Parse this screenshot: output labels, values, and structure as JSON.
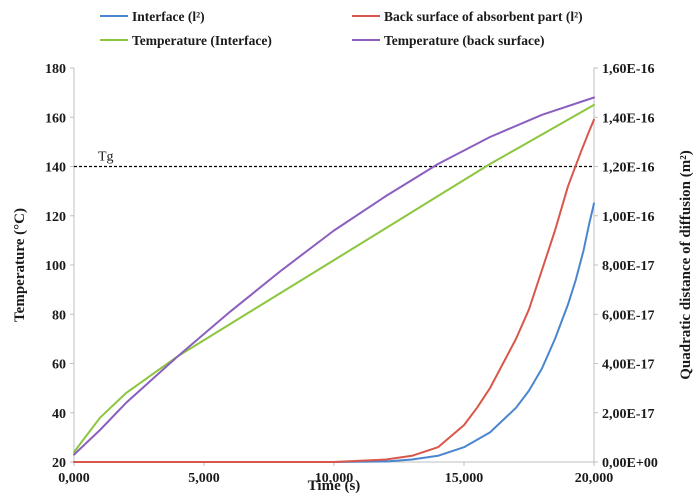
{
  "chart_data": {
    "type": "line",
    "xlabel": "Time (s)",
    "ylabel_left": "Temperature (°C)",
    "ylabel_right": "Quadratic distance of diffusion (m²)",
    "xlim": [
      0,
      20000
    ],
    "ylim_left": [
      20,
      180
    ],
    "ylim_right": [
      0,
      1.6e-16
    ],
    "x_ticks": [
      {
        "value": 0,
        "label": "0,000"
      },
      {
        "value": 5000,
        "label": "5,000"
      },
      {
        "value": 10000,
        "label": "10,000"
      },
      {
        "value": 15000,
        "label": "15,000"
      },
      {
        "value": 20000,
        "label": "20,000"
      }
    ],
    "y_left_ticks": [
      {
        "value": 20,
        "label": "20"
      },
      {
        "value": 40,
        "label": "40"
      },
      {
        "value": 60,
        "label": "60"
      },
      {
        "value": 80,
        "label": "80"
      },
      {
        "value": 100,
        "label": "100"
      },
      {
        "value": 120,
        "label": "120"
      },
      {
        "value": 140,
        "label": "140"
      },
      {
        "value": 160,
        "label": "160"
      },
      {
        "value": 180,
        "label": "180"
      }
    ],
    "y_right_ticks": [
      {
        "value": 0,
        "label": "0,00E+00"
      },
      {
        "value": 2e-17,
        "label": "2,00E-17"
      },
      {
        "value": 4e-17,
        "label": "4,00E-17"
      },
      {
        "value": 6e-17,
        "label": "6,00E-17"
      },
      {
        "value": 8e-17,
        "label": "8,00E-17"
      },
      {
        "value": 1e-16,
        "label": "1,00E-16"
      },
      {
        "value": 1.2e-16,
        "label": "1,20E-16"
      },
      {
        "value": 1.4e-16,
        "label": "1,40E-16"
      },
      {
        "value": 1.6e-16,
        "label": "1,60E-16"
      }
    ],
    "grid": false,
    "legend_position": "top",
    "reference_line": {
      "label": "Tg",
      "value": 140,
      "axis": "left",
      "style": "dashed",
      "color": "#000000"
    },
    "series": [
      {
        "name": "Interface (l²)",
        "axis": "right",
        "color": "#4a86cf",
        "x": [
          0,
          10000,
          12000,
          13000,
          14000,
          15000,
          16000,
          17000,
          17500,
          18000,
          18500,
          19000,
          19300,
          19600,
          19800,
          20000
        ],
        "y": [
          0,
          0,
          2e-19,
          1e-18,
          2.5e-18,
          6e-18,
          1.2e-17,
          2.2e-17,
          2.9e-17,
          3.8e-17,
          5e-17,
          6.4e-17,
          7.4e-17,
          8.6e-17,
          9.6e-17,
          1.05e-16
        ]
      },
      {
        "name": "Back surface of absorbent part (l²)",
        "axis": "right",
        "color": "#d9574a",
        "x": [
          0,
          10000,
          11000,
          12000,
          13000,
          14000,
          15000,
          15500,
          16000,
          16500,
          17000,
          17500,
          18000,
          18500,
          19000,
          19500,
          19800,
          20000
        ],
        "y": [
          0,
          0,
          5e-19,
          1e-18,
          2.5e-18,
          6e-18,
          1.5e-17,
          2.2e-17,
          3e-17,
          4e-17,
          5e-17,
          6.2e-17,
          7.8e-17,
          9.4e-17,
          1.12e-16,
          1.26e-16,
          1.34e-16,
          1.39e-16
        ]
      },
      {
        "name": "Temperature (Interface)",
        "axis": "left",
        "color": "#8cc63f",
        "x": [
          0,
          1000,
          2000,
          4000,
          6000,
          8000,
          10000,
          12000,
          14000,
          16000,
          18000,
          20000
        ],
        "y": [
          24,
          38,
          48,
          63,
          76,
          89,
          102,
          115,
          128,
          141,
          153,
          165
        ]
      },
      {
        "name": "Temperature (back surface)",
        "axis": "left",
        "color": "#8b5fbf",
        "x": [
          0,
          1000,
          2000,
          4000,
          6000,
          8000,
          10000,
          12000,
          14000,
          16000,
          18000,
          20000
        ],
        "y": [
          23,
          33,
          44,
          63,
          81,
          98,
          114,
          128,
          141,
          152,
          161,
          168
        ]
      }
    ]
  }
}
